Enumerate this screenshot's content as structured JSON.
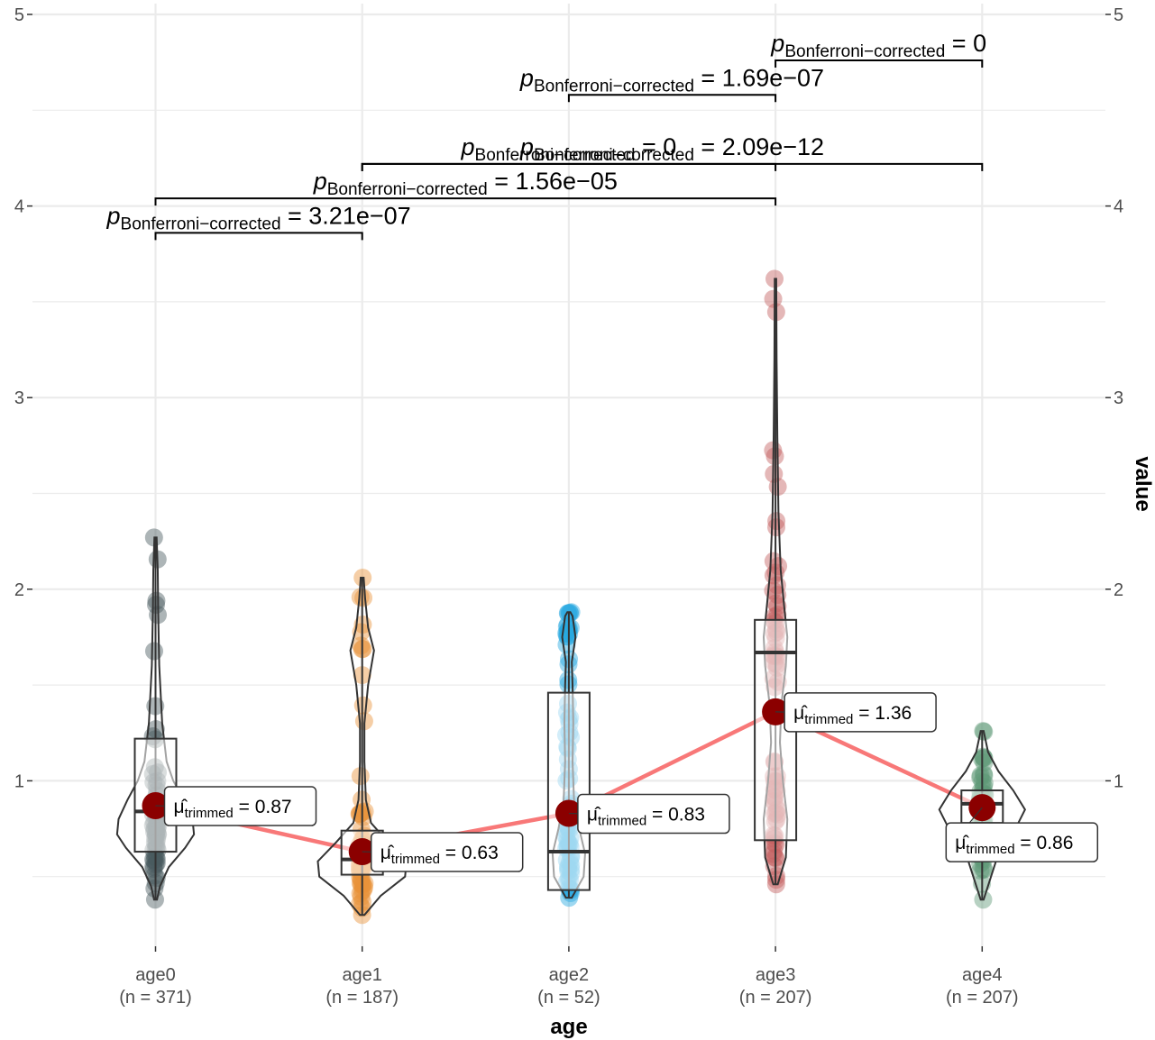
{
  "chart_data": {
    "type": "violin-box",
    "xlabel": "age",
    "ylabel": "value",
    "ylim": [
      0.13,
      5.05
    ],
    "yticks": [
      1,
      2,
      3,
      4,
      5
    ],
    "secondary_y_axis": true,
    "grid": true,
    "categories": [
      "age0",
      "age1",
      "age2",
      "age3",
      "age4"
    ],
    "category_counts": [
      "(n = 371)",
      "(n = 187)",
      "(n = 52)",
      "(n = 207)",
      "(n = 207)"
    ],
    "colors": [
      "#4a5a60",
      "#e8923a",
      "#28a8e0",
      "#c46060",
      "#5f9a78"
    ],
    "trimmed_mean_line_color": "#f87878",
    "mean_point_color": "#8b0000",
    "groups": [
      {
        "name": "age0",
        "trimmed_mean": 0.87,
        "trimmed_mean_label": "0.87",
        "box": {
          "q1": 0.63,
          "median": 0.84,
          "q3": 1.22
        },
        "whisker": [
          0.38,
          2.27
        ],
        "violin_profile": [
          [
            0.38,
            0.02
          ],
          [
            0.45,
            0.06
          ],
          [
            0.55,
            0.18
          ],
          [
            0.65,
            0.4
          ],
          [
            0.72,
            0.52
          ],
          [
            0.8,
            0.5
          ],
          [
            0.9,
            0.38
          ],
          [
            1.0,
            0.24
          ],
          [
            1.1,
            0.15
          ],
          [
            1.3,
            0.09
          ],
          [
            1.6,
            0.05
          ],
          [
            1.9,
            0.035
          ],
          [
            2.1,
            0.03
          ],
          [
            2.27,
            0.015
          ]
        ]
      },
      {
        "name": "age1",
        "trimmed_mean": 0.63,
        "trimmed_mean_label": "0.63",
        "box": {
          "q1": 0.51,
          "median": 0.59,
          "q3": 0.74
        },
        "whisker": [
          0.3,
          2.06
        ],
        "violin_profile": [
          [
            0.3,
            0.03
          ],
          [
            0.4,
            0.25
          ],
          [
            0.5,
            0.58
          ],
          [
            0.58,
            0.6
          ],
          [
            0.68,
            0.35
          ],
          [
            0.78,
            0.12
          ],
          [
            0.9,
            0.05
          ],
          [
            1.1,
            0.03
          ],
          [
            1.3,
            0.03
          ],
          [
            1.5,
            0.08
          ],
          [
            1.68,
            0.16
          ],
          [
            1.8,
            0.08
          ],
          [
            1.95,
            0.04
          ],
          [
            2.06,
            0.02
          ]
        ]
      },
      {
        "name": "age2",
        "trimmed_mean": 0.83,
        "trimmed_mean_label": "0.83",
        "box": {
          "q1": 0.43,
          "median": 0.63,
          "q3": 1.46
        },
        "whisker": [
          0.39,
          1.88
        ],
        "violin_profile": [
          [
            0.39,
            0.04
          ],
          [
            0.5,
            0.2
          ],
          [
            0.62,
            0.22
          ],
          [
            0.75,
            0.14
          ],
          [
            0.9,
            0.07
          ],
          [
            1.1,
            0.05
          ],
          [
            1.3,
            0.06
          ],
          [
            1.5,
            0.05
          ],
          [
            1.62,
            0.04
          ],
          [
            1.75,
            0.09
          ],
          [
            1.86,
            0.05
          ],
          [
            1.88,
            0.02
          ]
        ]
      },
      {
        "name": "age3",
        "trimmed_mean": 1.36,
        "trimmed_mean_label": "1.36",
        "box": {
          "q1": 0.69,
          "median": 1.67,
          "q3": 1.84
        },
        "whisker": [
          0.46,
          3.62
        ],
        "violin_profile": [
          [
            0.46,
            0.03
          ],
          [
            0.6,
            0.14
          ],
          [
            0.8,
            0.16
          ],
          [
            1.0,
            0.1
          ],
          [
            1.2,
            0.06
          ],
          [
            1.4,
            0.08
          ],
          [
            1.6,
            0.14
          ],
          [
            1.75,
            0.16
          ],
          [
            1.9,
            0.12
          ],
          [
            2.1,
            0.07
          ],
          [
            2.4,
            0.04
          ],
          [
            2.8,
            0.025
          ],
          [
            3.2,
            0.015
          ],
          [
            3.62,
            0.01
          ]
        ]
      },
      {
        "name": "age4",
        "trimmed_mean": 0.86,
        "trimmed_mean_label": "0.86",
        "box": {
          "q1": 0.78,
          "median": 0.88,
          "q3": 0.95
        },
        "whisker": [
          0.38,
          1.26
        ],
        "violin_profile": [
          [
            0.38,
            0.02
          ],
          [
            0.5,
            0.12
          ],
          [
            0.62,
            0.22
          ],
          [
            0.75,
            0.45
          ],
          [
            0.85,
            0.58
          ],
          [
            0.95,
            0.42
          ],
          [
            1.05,
            0.22
          ],
          [
            1.15,
            0.08
          ],
          [
            1.26,
            0.02
          ]
        ]
      }
    ],
    "trimmed_mean_prefix": "μ̂",
    "trimmed_mean_subscript": "trimmed",
    "pairwise_tests": [
      {
        "from": "age0",
        "to": "age1",
        "p_label": "3.21e−07"
      },
      {
        "from": "age0",
        "to": "age3",
        "p_label": "1.56e−05"
      },
      {
        "from": "age1",
        "to": "age3",
        "p_label": "0"
      },
      {
        "from": "age1",
        "to": "age4",
        "p_label": "2.09e−12"
      },
      {
        "from": "age2",
        "to": "age3",
        "p_label": "1.69e−07"
      },
      {
        "from": "age3",
        "to": "age4",
        "p_label": "0"
      }
    ],
    "p_symbol": "p",
    "p_subscript": "Bonferroni−corrected"
  }
}
